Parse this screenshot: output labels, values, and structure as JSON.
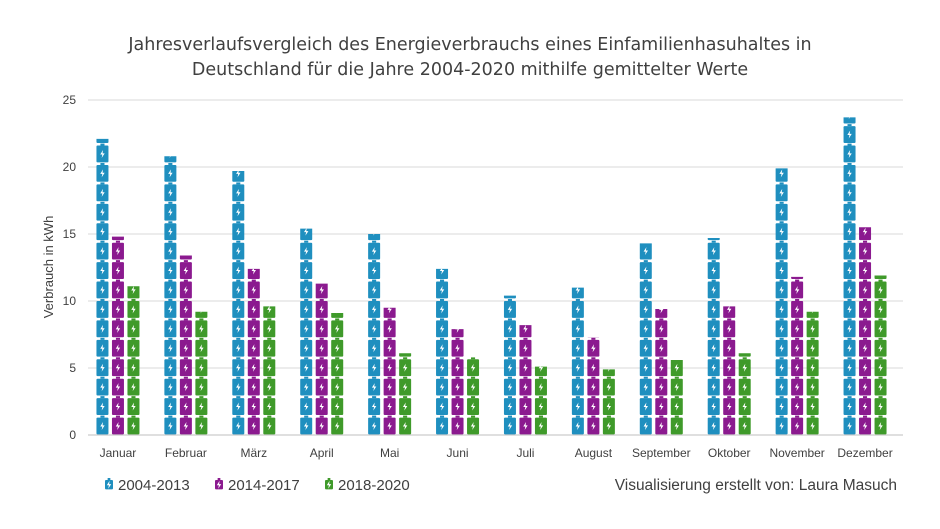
{
  "chart_data": {
    "type": "bar",
    "title_lines": [
      "Jahresverlaufsvergleich des Energieverbrauchs eines Einfamilienhasuhaltes in",
      "Deutschland für die Jahre 2004-2020 mithilfe gemittelter Werte"
    ],
    "ylabel": "Verbrauch in kWh",
    "xlabel": "",
    "ylim": [
      0,
      25
    ],
    "yticks": [
      0,
      5,
      10,
      15,
      20,
      25
    ],
    "grid": true,
    "legend_position": "bottom-left",
    "bar_style": "stacked-battery-icons",
    "categories": [
      "Januar",
      "Februar",
      "März",
      "April",
      "Mai",
      "Juni",
      "Juli",
      "August",
      "September",
      "Oktober",
      "November",
      "Dezember"
    ],
    "series": [
      {
        "name": "2004-2013",
        "color": "#1f8fbf",
        "icon": "battery-icon",
        "values": [
          22.1,
          20.8,
          19.7,
          15.4,
          15.0,
          12.4,
          10.4,
          11.0,
          14.3,
          14.7,
          19.9,
          23.7
        ]
      },
      {
        "name": "2014-2017",
        "color": "#8b1a8f",
        "icon": "battery-icon",
        "values": [
          14.8,
          13.4,
          12.4,
          11.3,
          9.5,
          7.9,
          8.2,
          7.3,
          9.4,
          9.6,
          11.8,
          15.5
        ]
      },
      {
        "name": "2018-2020",
        "color": "#3f9a2a",
        "icon": "battery-icon",
        "values": [
          11.1,
          9.2,
          9.6,
          9.1,
          6.1,
          5.8,
          5.1,
          4.9,
          5.6,
          6.1,
          9.2,
          11.9
        ]
      }
    ]
  },
  "credit": "Visualisierung erstellt von: Laura Masuch"
}
